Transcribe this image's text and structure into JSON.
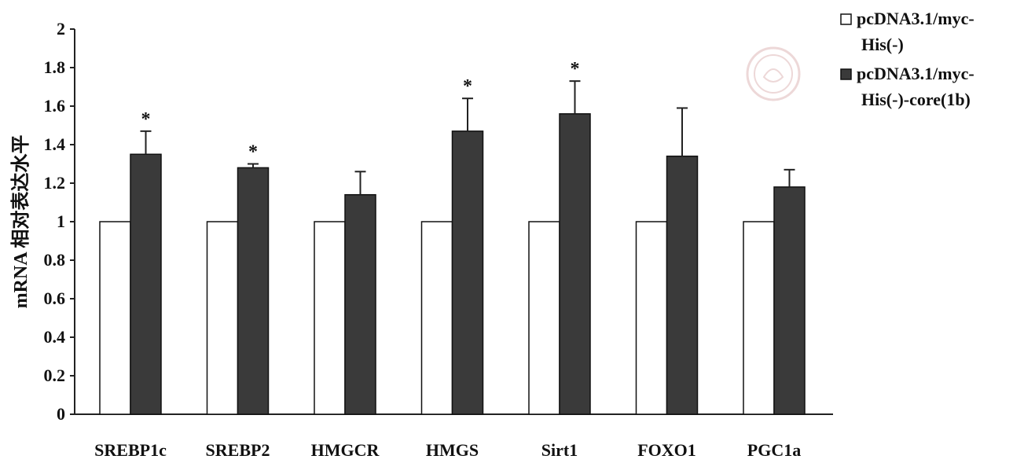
{
  "chart_data": {
    "type": "bar",
    "title": "",
    "xlabel": "",
    "ylabel": "mRNA 相对表达水平",
    "ylim": [
      0,
      2
    ],
    "yticks": [
      "0",
      "0.2",
      "0.4",
      "0.6",
      "0.8",
      "1",
      "1.2",
      "1.4",
      "1.6",
      "1.8",
      "2"
    ],
    "categories": [
      "SREBP1c",
      "SREBP2",
      "HMGCR",
      "HMGS",
      "Sirt1",
      "FOXO1",
      "PGC1a"
    ],
    "series": [
      {
        "name": "pcDNA3.1/myc-His(-)",
        "legend_lines": [
          "pcDNA3.1/myc-",
          "His(-)"
        ],
        "color": "#ffffff",
        "values": [
          1,
          1,
          1,
          1,
          1,
          1,
          1
        ],
        "errors": [
          0,
          0,
          0,
          0,
          0,
          0,
          0
        ]
      },
      {
        "name": "pcDNA3.1/myc-His(-)-core(1b)",
        "legend_lines": [
          "pcDNA3.1/myc-",
          "His(-)-core(1b)"
        ],
        "color": "#3a3a3a",
        "values": [
          1.35,
          1.28,
          1.14,
          1.47,
          1.56,
          1.34,
          1.18
        ],
        "errors": [
          0.12,
          0.02,
          0.12,
          0.17,
          0.17,
          0.25,
          0.09
        ]
      }
    ],
    "significance": [
      "*",
      "*",
      "",
      "*",
      "*",
      "",
      ""
    ],
    "grid": false,
    "legend_position": "top-right"
  }
}
